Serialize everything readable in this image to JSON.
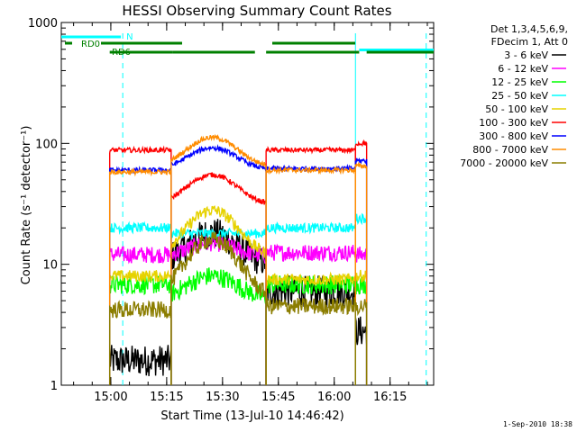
{
  "chart_data": {
    "type": "line",
    "title": "HESSI Observing Summary Count Rates",
    "xlabel": "Start Time (13-Jul-10 14:46:42)",
    "ylabel": "Count Rate (s⁻¹ detector⁻¹)",
    "y_scale": "log",
    "ylim": [
      1,
      1000
    ],
    "xlim_minutes_from_start": [
      0,
      100
    ],
    "x_ticks": [
      "15:00",
      "15:15",
      "15:30",
      "15:45",
      "16:00",
      "16:15"
    ],
    "y_ticks": [
      "1",
      "10",
      "100",
      "1000"
    ],
    "legend": {
      "placement": "right, outside plot",
      "header": [
        "Det 1,3,4,5,6,9,",
        "FDecim 1, Att 0"
      ],
      "entries": [
        {
          "label": "3 - 6 keV",
          "color": "#000000"
        },
        {
          "label": "6 - 12 keV",
          "color": "#ff00ff"
        },
        {
          "label": "12 - 25 keV",
          "color": "#00ff00"
        },
        {
          "label": "25 - 50 keV",
          "color": "#00ffff"
        },
        {
          "label": "50 - 100 keV",
          "color": "#e6d200"
        },
        {
          "label": "100 - 300 keV",
          "color": "#ff0000"
        },
        {
          "label": "300 - 800 keV",
          "color": "#0000ff"
        },
        {
          "label": "800 - 7000 keV",
          "color": "#ff8c00"
        },
        {
          "label": "7000 - 20000 keV",
          "color": "#8b7d00"
        }
      ]
    },
    "intervals_minutes": [
      [
        13,
        29.5
      ],
      [
        29.5,
        55
      ],
      [
        55,
        79
      ],
      [
        79,
        82
      ]
    ],
    "series": [
      {
        "name": "3 - 6 keV",
        "color": "#000000",
        "seg_levels": [
          1.6,
          10,
          6,
          2.8
        ],
        "peak": 18,
        "noise": 0.13
      },
      {
        "name": "6 - 12 keV",
        "color": "#ff00ff",
        "seg_levels": [
          12,
          11.5,
          12.5,
          12
        ],
        "peak": 15,
        "noise": 0.07
      },
      {
        "name": "12 - 25 keV",
        "color": "#00ff00",
        "seg_levels": [
          6.8,
          5.2,
          6.8,
          6.8
        ],
        "peak": 8,
        "noise": 0.08
      },
      {
        "name": "25 - 50 keV",
        "color": "#00ffff",
        "seg_levels": [
          20,
          18,
          20,
          24
        ],
        "peak": 18,
        "noise": 0.04
      },
      {
        "name": "50 - 100 keV",
        "color": "#e6d200",
        "seg_levels": [
          8,
          11.5,
          7.5,
          8
        ],
        "peak": 28,
        "noise": 0.05
      },
      {
        "name": "100 - 300 keV",
        "color": "#ff0000",
        "seg_levels": [
          88,
          31,
          88,
          100
        ],
        "peak": 55,
        "noise": 0.02
      },
      {
        "name": "300 - 800 keV",
        "color": "#0000ff",
        "seg_levels": [
          60,
          60,
          62,
          72
        ],
        "peak": 92,
        "noise": 0.02
      },
      {
        "name": "800 - 7000 keV",
        "color": "#ff8c00",
        "seg_levels": [
          58,
          64,
          60,
          65
        ],
        "peak": 112,
        "noise": 0.02
      },
      {
        "name": "7000 - 20000 keV",
        "color": "#8b7d00",
        "seg_levels": [
          4.2,
          5.2,
          4.5,
          4.5
        ],
        "peak": 16,
        "noise": 0.07
      }
    ],
    "flags": [
      {
        "name": "N",
        "color": "#00ffff",
        "bars": [
          [
            0,
            16
          ]
        ]
      },
      {
        "name": "RD0",
        "color": "#00ffff",
        "bars": [
          [
            80,
            100
          ]
        ]
      },
      {
        "name": "RD6",
        "color": "#008000",
        "bars": [
          [
            13,
            30
          ],
          [
            30,
            52
          ],
          [
            55,
            80
          ],
          [
            82,
            100
          ]
        ]
      }
    ],
    "flag_labels": [
      "N",
      "RD0",
      "RD6"
    ],
    "vlines_minutes": [
      16.5,
      79,
      98
    ]
  },
  "footer": {
    "timestamp": "1-Sep-2010 18:38"
  }
}
